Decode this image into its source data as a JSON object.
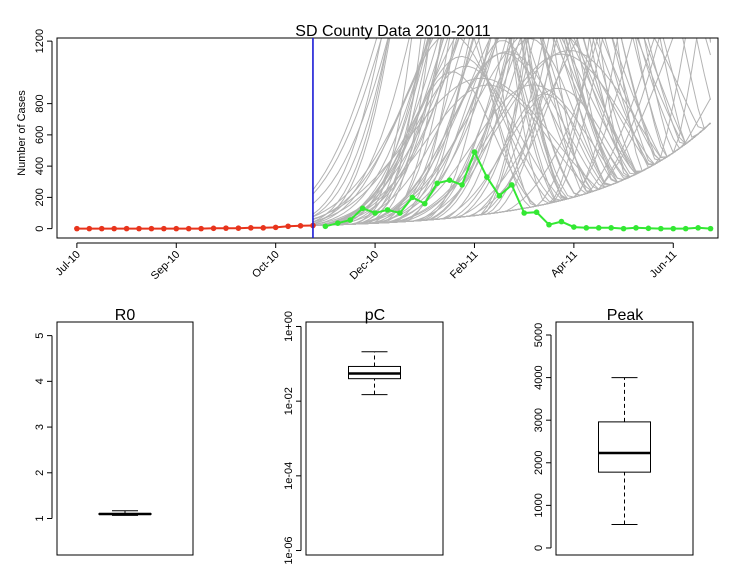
{
  "chart_data": [
    {
      "type": "line",
      "title": "SD County Data 2010-2011",
      "xlabel": "",
      "ylabel": "Number of Cases",
      "ylim": [
        -60,
        1220
      ],
      "y_ticks": [
        0,
        200,
        400,
        600,
        800,
        1200
      ],
      "x_unit": "week index (week 0 = early Jul 2010)",
      "xlim": [
        -1.6,
        51.6
      ],
      "x_ticks": [
        {
          "x": 0,
          "label": "Jul-10"
        },
        {
          "x": 8,
          "label": "Sep-10"
        },
        {
          "x": 16,
          "label": "Oct-10"
        },
        {
          "x": 24,
          "label": "Dec-10"
        },
        {
          "x": 32,
          "label": "Feb-11"
        },
        {
          "x": 40,
          "label": "Apr-11"
        },
        {
          "x": 48,
          "label": "Jun-11"
        }
      ],
      "vertical_line_x": 19,
      "series": [
        {
          "color": "#e8341c",
          "points": [
            [
              0,
              0
            ],
            [
              1,
              0
            ],
            [
              2,
              0
            ],
            [
              3,
              0
            ],
            [
              4,
              0
            ],
            [
              5,
              0
            ],
            [
              6,
              0
            ],
            [
              7,
              0
            ],
            [
              8,
              0
            ],
            [
              9,
              0
            ],
            [
              10,
              0
            ],
            [
              11,
              2
            ],
            [
              12,
              3
            ],
            [
              13,
              3
            ],
            [
              14,
              5
            ],
            [
              15,
              5
            ],
            [
              16,
              8
            ],
            [
              17,
              15
            ],
            [
              18,
              18
            ],
            [
              19,
              20
            ]
          ]
        },
        {
          "color": "#33e833",
          "points": [
            [
              20,
              15
            ],
            [
              21,
              35
            ],
            [
              22,
              55
            ],
            [
              23,
              130
            ],
            [
              24,
              100
            ],
            [
              25,
              120
            ],
            [
              26,
              100
            ],
            [
              27,
              200
            ],
            [
              28,
              160
            ],
            [
              29,
              290
            ],
            [
              30,
              310
            ],
            [
              31,
              280
            ],
            [
              32,
              490
            ],
            [
              33,
              330
            ],
            [
              34,
              210
            ],
            [
              35,
              280
            ],
            [
              36,
              100
            ],
            [
              37,
              105
            ],
            [
              38,
              25
            ],
            [
              39,
              45
            ],
            [
              40,
              10
            ],
            [
              41,
              5
            ],
            [
              42,
              5
            ],
            [
              43,
              5
            ],
            [
              44,
              0
            ],
            [
              45,
              5
            ],
            [
              46,
              2
            ],
            [
              47,
              0
            ],
            [
              48,
              0
            ],
            [
              49,
              0
            ],
            [
              50,
              5
            ],
            [
              51,
              0
            ]
          ]
        }
      ],
      "projections": {
        "color": "#b3b3b3",
        "note": "many grey projected trajectories from the model fits"
      }
    },
    {
      "type": "box",
      "title": "R0",
      "ylim": [
        0.3,
        5.2
      ],
      "y_ticks": [
        1,
        2,
        3,
        4,
        5
      ],
      "box": {
        "whisker_low": 1.07,
        "q1": 1.09,
        "median": 1.1,
        "q3": 1.11,
        "whisker_high": 1.17
      }
    },
    {
      "type": "box",
      "title": "pC",
      "scale": "log10",
      "ylim": [
        1e-06,
        1.0
      ],
      "y_ticks": [
        "1e-06",
        "1e-04",
        "1e-02",
        "1e+00"
      ],
      "box": {
        "whisker_low": 0.015,
        "q1": 0.04,
        "median": 0.055,
        "q3": 0.085,
        "whisker_high": 0.21
      }
    },
    {
      "type": "box",
      "title": "Peak",
      "ylim": [
        -60,
        5200
      ],
      "y_ticks": [
        0,
        1000,
        2000,
        3000,
        4000,
        5000
      ],
      "box": {
        "whisker_low": 550,
        "q1": 1780,
        "median": 2230,
        "q3": 2960,
        "whisker_high": 4000
      }
    }
  ]
}
